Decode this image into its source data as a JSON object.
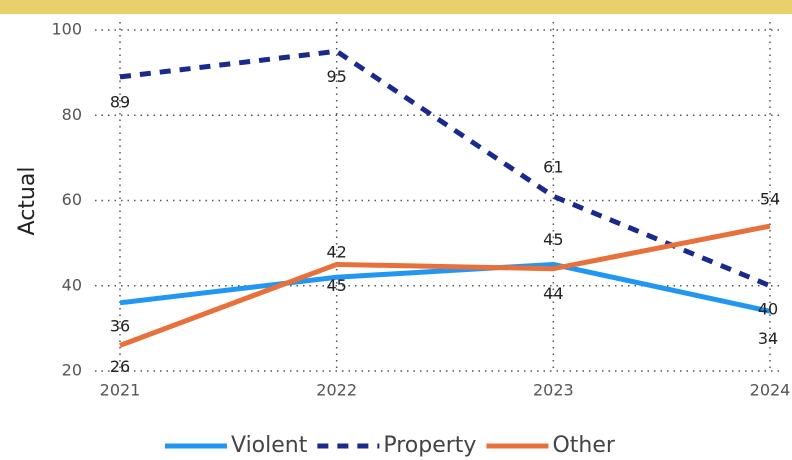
{
  "chart_data": {
    "type": "line",
    "y_label": "Actual",
    "categories": [
      "2021",
      "2022",
      "2023",
      "2024"
    ],
    "series": [
      {
        "name": "Violent",
        "color": "#2196f3",
        "dash": false,
        "values": [
          36,
          42,
          45,
          34
        ]
      },
      {
        "name": "Property",
        "color": "#1a2a8c",
        "dash": true,
        "values": [
          89,
          95,
          61,
          40
        ]
      },
      {
        "name": "Other",
        "color": "#e8703a",
        "dash": false,
        "values": [
          26,
          45,
          44,
          54
        ]
      }
    ],
    "ylim": [
      20,
      100
    ],
    "yticks": [
      20,
      40,
      60,
      80,
      100
    ],
    "grid": true,
    "legend": "bottom"
  }
}
